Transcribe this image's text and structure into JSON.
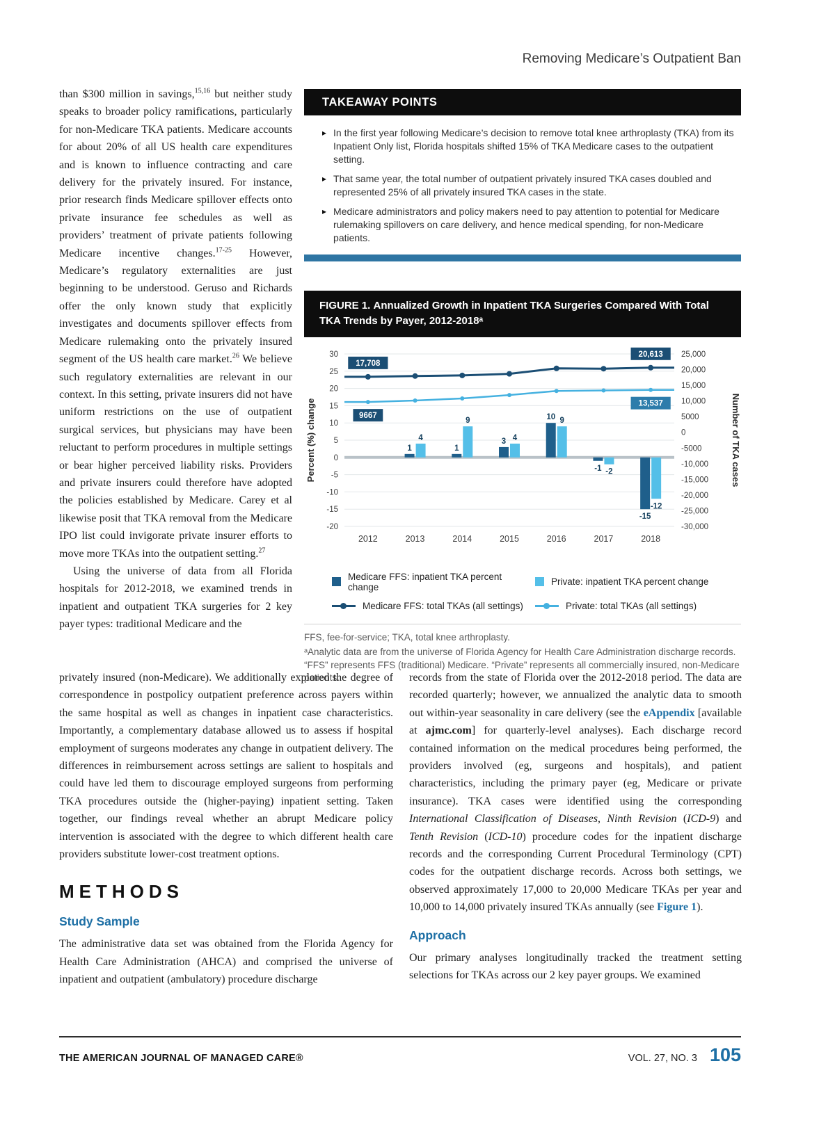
{
  "page": {
    "running_head": "Removing Medicare’s Outpatient Ban",
    "footer_left": "THE AMERICAN JOURNAL OF MANAGED CARE®",
    "footer_right": "VOL. 27, NO. 3",
    "page_number": "105"
  },
  "colors": {
    "accent_blue": "#1d6fa5",
    "divider_blue": "#2e75a3",
    "header_black": "#0d0d0d"
  },
  "left_column": {
    "para1_segments": [
      "than $300 million in savings,",
      "15,16",
      " but neither study speaks to broader policy ramifications, particularly for non-Medicare TKA patients. Medicare accounts for about 20% of all US health care expenditures and is known to influence contracting and care delivery for the privately insured. For instance, prior research finds Medicare spillover effects onto private insurance fee schedules as well as providers’ treatment of private patients following Medicare incentive changes.",
      "17-25",
      " However, Medicare’s regulatory externalities are just beginning to be understood. Geruso and Richards offer the only known study that explicitly investigates and documents spillover effects from Medicare rulemaking onto the privately insured segment of the US health care market.",
      "26",
      " We believe such regulatory externalities are relevant in our context. In this setting, private insurers did not have uniform restrictions on the use of outpatient surgical services, but physicians may have been reluctant to perform procedures in multiple settings or bear higher perceived liability risks. Providers and private insurers could therefore have adopted the policies established by Medicare. Carey et al likewise posit that TKA removal from the Medicare IPO list could invigorate private insurer efforts to move more TKAs into the outpatient setting.",
      "27"
    ],
    "para2": "Using the universe of data from all Florida hospitals for 2012-2018, we examined trends in inpatient and outpatient TKA surgeries for 2 key payer types: traditional Medicare and the"
  },
  "takeaway": {
    "title": "TAKEAWAY POINTS",
    "bullets": [
      "In the first year following Medicare’s decision to remove total knee arthroplasty (TKA) from its Inpatient Only list, Florida hospitals shifted 15% of TKA Medicare cases to the outpatient setting.",
      "That same year, the total number of outpatient privately insured TKA cases doubled and represented 25% of all privately insured TKA cases in the state.",
      "Medicare administrators and policy makers need to pay attention to potential for Medicare rulemaking spillovers on care delivery, and hence medical spending, for non-Medicare patients."
    ]
  },
  "figure": {
    "label": "FIGURE 1.",
    "title": "Annualized Growth in Inpatient TKA Surgeries Compared With Total TKA Trends by Payer, 2012-2018ᵃ",
    "footnote_abbrev": "FFS, fee-for-service; TKA, total knee arthroplasty.",
    "footnote_source": "ᵃAnalytic data are from the universe of Florida Agency for Health Care Administration discharge records. “FFS” represents FFS (traditional) Medicare. “Private” represents all commercially insured, non-Medicare patients."
  },
  "chart_data": {
    "type": "bar+line",
    "categories": [
      "2012",
      "2013",
      "2014",
      "2015",
      "2016",
      "2017",
      "2018"
    ],
    "bar_series": [
      {
        "name": "Medicare FFS: inpatient TKA percent change",
        "color": "#1f5f8b",
        "values": [
          null,
          1,
          1,
          3,
          10,
          -1,
          -15
        ]
      },
      {
        "name": "Private: inpatient TKA percent change",
        "color": "#54bfe8",
        "values": [
          null,
          4,
          9,
          4,
          9,
          -2,
          -12
        ]
      }
    ],
    "line_series": [
      {
        "name": "Medicare FFS: total TKAs (all settings)",
        "color": "#1b4e74",
        "values": [
          17708,
          17950,
          18150,
          18650,
          20400,
          20300,
          20613
        ]
      },
      {
        "name": "Private: total TKAs (all settings)",
        "color": "#45b1e0",
        "values": [
          9667,
          10150,
          10800,
          11900,
          13200,
          13350,
          13537
        ]
      }
    ],
    "point_labels": [
      {
        "text": "17,708",
        "series": 0,
        "index": 0,
        "bg": "#1b4e74",
        "placement": "above"
      },
      {
        "text": "9667",
        "series": 1,
        "index": 0,
        "bg": "#1b4e74",
        "placement": "below"
      },
      {
        "text": "20,613",
        "series": 0,
        "index": 6,
        "bg": "#1b4e74",
        "placement": "above"
      },
      {
        "text": "13,537",
        "series": 1,
        "index": 6,
        "bg": "#2d7cab",
        "placement": "below"
      }
    ],
    "ylabel_left": "Percent (%) change",
    "ylabel_right": "Number of TKA cases",
    "yticks_left": [
      30,
      25,
      20,
      15,
      10,
      5,
      0,
      -5,
      -10,
      -15,
      -20
    ],
    "ylim_left": [
      -20,
      30
    ],
    "yticks_right_values": [
      25000,
      20000,
      15000,
      10000,
      5000,
      0,
      -5000,
      -10000,
      -15000,
      -20000,
      -25000,
      -30000
    ],
    "yticks_right_labels": [
      "25,000",
      "20,000",
      "15,000",
      "10,000",
      "5000",
      "0",
      "-5000",
      "-10,000",
      "-15,000",
      "-20,000",
      "-25,000",
      "-30,000"
    ],
    "ylim_right": [
      -30000,
      25000
    ],
    "grid": true,
    "legend_position": "bottom"
  },
  "mid_left": {
    "para": "privately insured (non-Medicare). We additionally explored the degree of correspondence in postpolicy outpatient preference across payers within the same hospital as well as changes in inpatient case characteristics. Importantly, a complementary database allowed us to assess if hospital employment of surgeons moderates any change in outpatient delivery. The differences in reimbursement across settings are salient to hospitals and could have led them to discourage employed surgeons from performing TKA procedures outside the (higher-paying) inpatient setting. Taken together, our findings reveal whether an abrupt Medicare policy intervention is associated with the degree to which different health care providers substitute lower-cost treatment options.",
    "methods_heading": "METHODS",
    "study_sample_heading": "Study Sample",
    "study_sample_para": "The administrative data set was obtained from the Florida Agency for Health Care Administration (AHCA) and comprised the universe of inpatient and outpatient (ambulatory) procedure discharge"
  },
  "mid_right": {
    "para_segments": [
      "records from the state of Florida over the 2012-2018 period. The data are recorded quarterly; however, we annualized the analytic data to smooth out within-year seasonality in care delivery (see the ",
      "eAppendix",
      " [available at ",
      "ajmc.com",
      "] for quarterly-level analyses). Each discharge record contained information on the medical procedures being performed, the providers involved (eg, surgeons and hospitals), and patient characteristics, including the primary payer (eg, Medicare or private insurance). TKA cases were identified using the corresponding ",
      "International Classification of Diseases, Ninth Revision",
      " (",
      "ICD-9",
      ") and ",
      "Tenth Revision",
      " (",
      "ICD-10",
      ") procedure codes for the inpatient discharge records and the corresponding Current Procedural Terminology (CPT) codes for the outpatient discharge records. Across both settings, we observed approximately 17,000 to 20,000 Medicare TKAs per year and 10,000 to 14,000 privately insured TKAs annually (see ",
      "Figure 1",
      ")."
    ],
    "approach_heading": "Approach",
    "approach_para": "Our primary analyses longitudinally tracked the treatment setting selections for TKAs across our 2 key payer groups. We examined"
  }
}
